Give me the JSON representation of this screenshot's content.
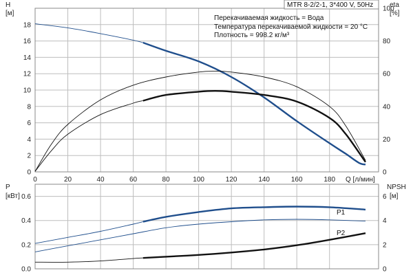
{
  "title_box": "MTR 8-2/2-1, 3*400 V, 50Hz",
  "notes": [
    "Перекачиваемая жидкость = Вода",
    "Температура перекачиваемой жидкости = 20 °C",
    "Плотность = 998.2 кг/м³"
  ],
  "colors": {
    "blue": "#1f4e8c",
    "black": "#111111",
    "grid": "#bdbdbd"
  },
  "chart_data": [
    {
      "type": "line",
      "panel": "top",
      "xlabel": "Q [л/мин]",
      "ylabel_left": [
        "H",
        "[м]"
      ],
      "ylabel_right": [
        "eta",
        "[%]"
      ],
      "xlim": [
        0,
        210
      ],
      "ylim_left": [
        0,
        20
      ],
      "ylim_right": [
        0,
        100
      ],
      "x_ticks": [
        0,
        20,
        40,
        60,
        80,
        100,
        120,
        140,
        160,
        180
      ],
      "y_ticks_left": [
        0,
        2,
        4,
        6,
        8,
        10,
        12,
        14,
        16,
        18
      ],
      "y_ticks_right": [
        0,
        20,
        40,
        60,
        80,
        100
      ],
      "grid": true,
      "series": [
        {
          "axis": "left",
          "color": "blue",
          "thin_until": 66,
          "thick_until": 202,
          "points": [
            [
              0,
              18.1
            ],
            [
              20,
              17.6
            ],
            [
              40,
              16.9
            ],
            [
              60,
              16.1
            ],
            [
              66,
              15.8
            ],
            [
              80,
              14.8
            ],
            [
              100,
              13.5
            ],
            [
              120,
              11.6
            ],
            [
              140,
              9.1
            ],
            [
              160,
              6.2
            ],
            [
              180,
              3.5
            ],
            [
              190,
              2.2
            ],
            [
              198,
              1.1
            ],
            [
              202,
              0.9
            ]
          ]
        },
        {
          "axis": "right",
          "color": "black",
          "thin_until": 202,
          "points": [
            [
              0,
              0.3
            ],
            [
              10,
              17
            ],
            [
              20,
              29
            ],
            [
              40,
              44
            ],
            [
              60,
              53
            ],
            [
              80,
              58
            ],
            [
              100,
              61
            ],
            [
              110,
              61.5
            ],
            [
              120,
              61
            ],
            [
              140,
              58
            ],
            [
              160,
              52
            ],
            [
              180,
              40
            ],
            [
              190,
              28
            ],
            [
              202,
              7
            ]
          ]
        },
        {
          "axis": "right",
          "color": "black",
          "thin_until": 66,
          "thick_until": 202,
          "points": [
            [
              0,
              0.3
            ],
            [
              10,
              13
            ],
            [
              20,
              23
            ],
            [
              40,
              35
            ],
            [
              60,
              42
            ],
            [
              66,
              43.5
            ],
            [
              80,
              47
            ],
            [
              100,
              49
            ],
            [
              110,
              49.5
            ],
            [
              120,
              49
            ],
            [
              140,
              47
            ],
            [
              160,
              43
            ],
            [
              180,
              33
            ],
            [
              190,
              23
            ],
            [
              202,
              6
            ]
          ]
        }
      ]
    },
    {
      "type": "line",
      "panel": "bottom",
      "ylabel_left": [
        "P",
        "[кВт]"
      ],
      "ylabel_right": [
        "NPSH",
        "[м]"
      ],
      "xlim": [
        0,
        210
      ],
      "ylim_left": [
        0,
        0.7
      ],
      "ylim_right": [
        0,
        7
      ],
      "y_ticks_left": [
        0.0,
        0.2,
        0.4,
        0.6
      ],
      "y_ticks_left_labels": [
        "0.0",
        "0.2",
        "0.4",
        "0.6"
      ],
      "y_ticks_right": [
        0,
        2,
        4,
        6
      ],
      "grid": true,
      "series_labels": [
        "P1",
        "P2"
      ],
      "series": [
        {
          "name": "P1",
          "axis": "left",
          "color": "blue",
          "thin_until": 66,
          "thick_until": 202,
          "points": [
            [
              0,
              0.21
            ],
            [
              20,
              0.26
            ],
            [
              40,
              0.31
            ],
            [
              60,
              0.37
            ],
            [
              66,
              0.39
            ],
            [
              80,
              0.43
            ],
            [
              100,
              0.47
            ],
            [
              120,
              0.5
            ],
            [
              140,
              0.51
            ],
            [
              160,
              0.515
            ],
            [
              180,
              0.51
            ],
            [
              202,
              0.49
            ]
          ]
        },
        {
          "name": "P2",
          "axis": "left",
          "color": "blue",
          "thin_until": 202,
          "points": [
            [
              0,
              0.14
            ],
            [
              20,
              0.19
            ],
            [
              40,
              0.24
            ],
            [
              60,
              0.29
            ],
            [
              80,
              0.34
            ],
            [
              100,
              0.37
            ],
            [
              120,
              0.39
            ],
            [
              140,
              0.405
            ],
            [
              160,
              0.41
            ],
            [
              180,
              0.405
            ],
            [
              202,
              0.395
            ]
          ]
        },
        {
          "axis": "right",
          "color": "black",
          "thin_until": 66,
          "thick_until": 202,
          "points": [
            [
              0,
              0.55
            ],
            [
              20,
              0.55
            ],
            [
              40,
              0.65
            ],
            [
              60,
              0.85
            ],
            [
              66,
              0.9
            ],
            [
              80,
              1.0
            ],
            [
              100,
              1.15
            ],
            [
              120,
              1.35
            ],
            [
              140,
              1.6
            ],
            [
              160,
              1.95
            ],
            [
              180,
              2.4
            ],
            [
              202,
              2.95
            ]
          ]
        }
      ]
    }
  ]
}
